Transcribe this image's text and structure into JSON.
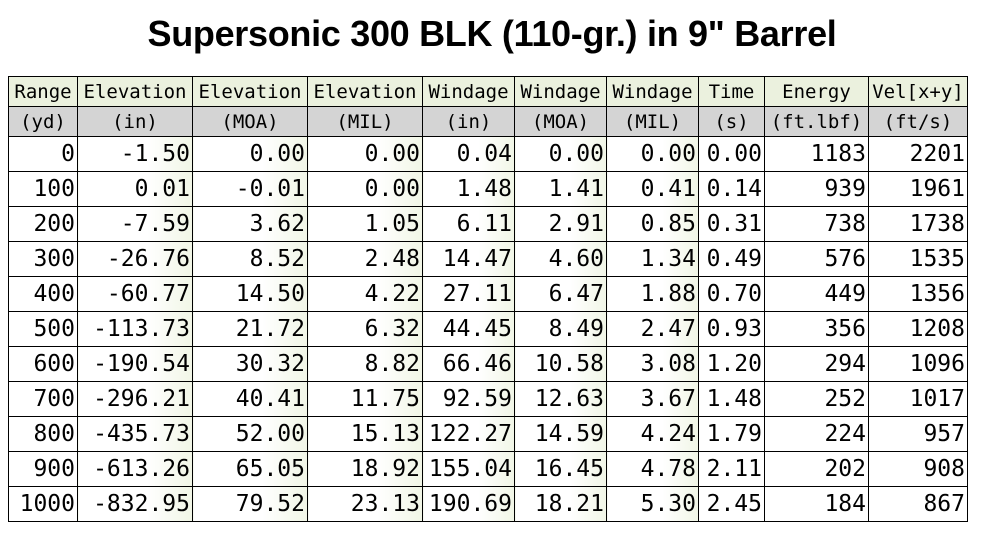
{
  "title": "Supersonic 300 BLK (110-gr.) in 9\" Barrel",
  "table": {
    "headers": [
      "Range",
      "Elevation",
      "Elevation",
      "Elevation",
      "Windage",
      "Windage",
      "Windage",
      "Time",
      "Energy",
      "Vel[x+y]"
    ],
    "units": [
      "(yd)",
      "(in)",
      "(MOA)",
      "(MIL)",
      "(in)",
      "(MOA)",
      "(MIL)",
      "(s)",
      "(ft.lbf)",
      "(ft/s)"
    ],
    "rows": [
      [
        "0",
        "-1.50",
        "0.00",
        "0.00",
        "0.04",
        "0.00",
        "0.00",
        "0.00",
        "1183",
        "2201"
      ],
      [
        "100",
        "0.01",
        "-0.01",
        "0.00",
        "1.48",
        "1.41",
        "0.41",
        "0.14",
        "939",
        "1961"
      ],
      [
        "200",
        "-7.59",
        "3.62",
        "1.05",
        "6.11",
        "2.91",
        "0.85",
        "0.31",
        "738",
        "1738"
      ],
      [
        "300",
        "-26.76",
        "8.52",
        "2.48",
        "14.47",
        "4.60",
        "1.34",
        "0.49",
        "576",
        "1535"
      ],
      [
        "400",
        "-60.77",
        "14.50",
        "4.22",
        "27.11",
        "6.47",
        "1.88",
        "0.70",
        "449",
        "1356"
      ],
      [
        "500",
        "-113.73",
        "21.72",
        "6.32",
        "44.45",
        "8.49",
        "2.47",
        "0.93",
        "356",
        "1208"
      ],
      [
        "600",
        "-190.54",
        "30.32",
        "8.82",
        "66.46",
        "10.58",
        "3.08",
        "1.20",
        "294",
        "1096"
      ],
      [
        "700",
        "-296.21",
        "40.41",
        "11.75",
        "92.59",
        "12.63",
        "3.67",
        "1.48",
        "252",
        "1017"
      ],
      [
        "800",
        "-435.73",
        "52.00",
        "15.13",
        "122.27",
        "14.59",
        "4.24",
        "1.79",
        "224",
        "957"
      ],
      [
        "900",
        "-613.26",
        "65.05",
        "18.92",
        "155.04",
        "16.45",
        "4.78",
        "2.11",
        "202",
        "908"
      ],
      [
        "1000",
        "-832.95",
        "79.52",
        "23.13",
        "190.69",
        "18.21",
        "5.30",
        "2.45",
        "184",
        "867"
      ]
    ]
  },
  "colors": {
    "header_bg": "#ebf1de",
    "units_bg": "#d4d4d4",
    "border": "#000000"
  }
}
